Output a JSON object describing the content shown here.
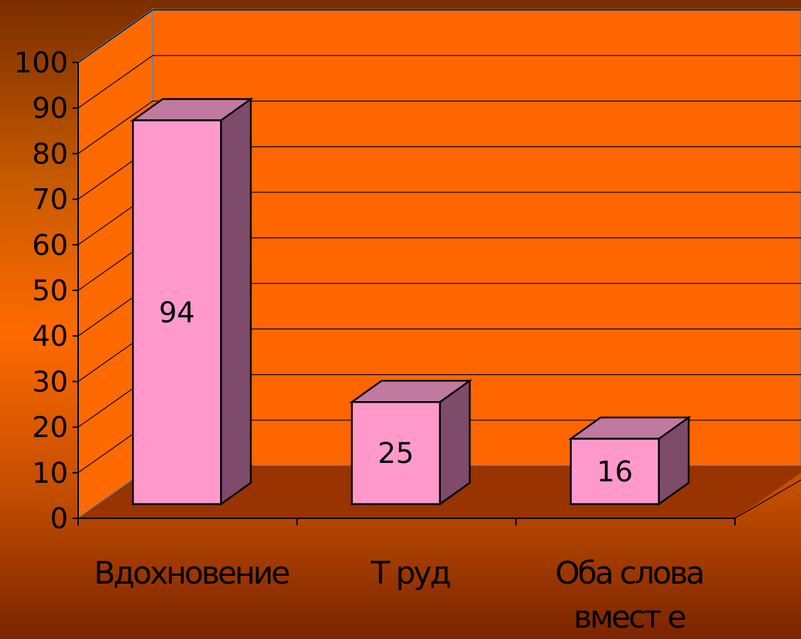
{
  "chart_data": {
    "type": "bar",
    "three_d": true,
    "categories": [
      "Вдохновение",
      "Труд",
      "Оба слова вместе"
    ],
    "category_lines": [
      [
        "Вдохновение"
      ],
      [
        "Т руд"
      ],
      [
        "Оба слова",
        "вмест е"
      ]
    ],
    "values": [
      94,
      25,
      16
    ],
    "data_labels": [
      "94",
      "25",
      "16"
    ],
    "y_ticks": [
      "0",
      "10",
      "20",
      "30",
      "40",
      "50",
      "60",
      "70",
      "80",
      "90",
      "100"
    ],
    "ylim": [
      0,
      100
    ],
    "title": "",
    "xlabel": "",
    "ylabel": "",
    "grid": true,
    "legend": "none"
  },
  "colors": {
    "back_wall": "#ff6600",
    "side_wall": "#ff6a00",
    "floor": "#993300",
    "bar_front": "#ff99cc",
    "bar_top": "#c07aa0",
    "bar_side": "#7e4b6a",
    "gridline": "#000000",
    "text": "#000000"
  }
}
